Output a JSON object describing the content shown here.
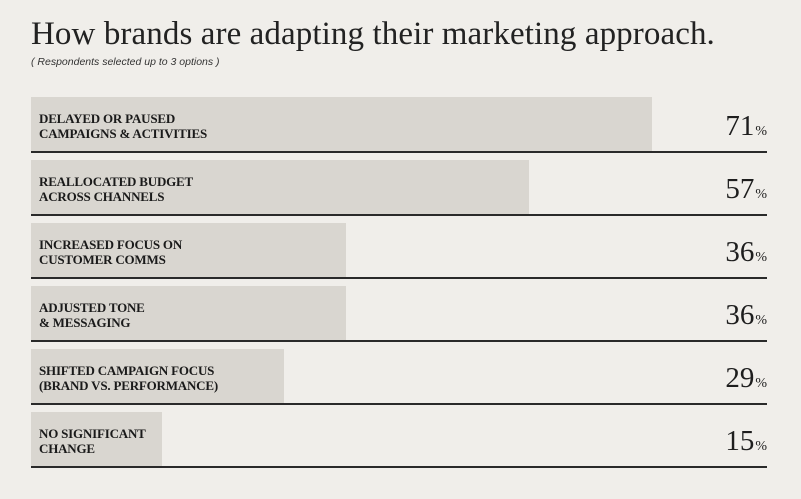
{
  "title": "How brands are adapting their marketing approach.",
  "subtitle": "( Respondents selected up to 3 options )",
  "percent_symbol": "%",
  "colors": {
    "background": "#f0eeea",
    "bar": "#d9d6d0",
    "rule": "#2a2a2a",
    "text": "#1e1e1e"
  },
  "chart_data": {
    "type": "bar",
    "orientation": "horizontal",
    "title": "How brands are adapting their marketing approach.",
    "subtitle": "( Respondents selected up to 3 options )",
    "xlabel": "",
    "ylabel": "",
    "xlim": [
      0,
      100
    ],
    "unit": "%",
    "grid": false,
    "legend": "none",
    "categories": [
      "DELAYED OR PAUSED\nCAMPAIGNS & ACTIVITIES",
      "REALLOCATED BUDGET\nACROSS CHANNELS",
      "INCREASED FOCUS ON\nCUSTOMER COMMS",
      "ADJUSTED TONE\n& MESSAGING",
      "SHIFTED CAMPAIGN FOCUS\n(BRAND vs. PERFORMANCE)",
      "NO SIGNIFICANT\nCHANGE"
    ],
    "values": [
      71,
      57,
      36,
      36,
      29,
      15
    ]
  }
}
